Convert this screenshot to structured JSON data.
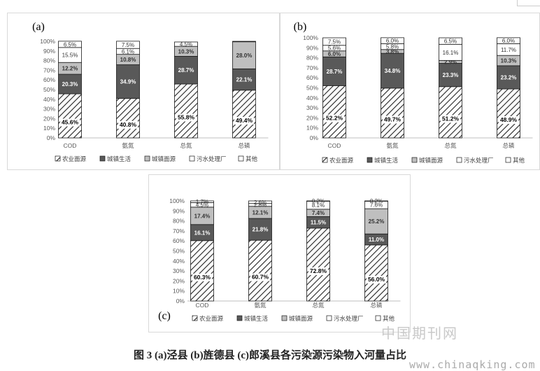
{
  "caption": "图 3   (a)泾县  (b)旌德县  (c)郎溪县各污染源污染物入河量占比",
  "watermark": {
    "cn": "中国期刊网",
    "url": "www.chinaqking.com"
  },
  "legend": [
    "农业面源",
    "城镇生活",
    "城镇面源",
    "污水处理厂",
    "其他"
  ],
  "colors": {
    "agri": "#ffffff",
    "urban_life": "#595959",
    "urban_nonpoint": "#bfbfbf",
    "sewage": "#ffffff",
    "other": "#ffffff"
  },
  "chart_data": [
    {
      "type": "bar",
      "stacked": true,
      "panel_label": "(a)",
      "categories": [
        "COD",
        "氨氮",
        "总氮",
        "总磷"
      ],
      "ylim": [
        0,
        100
      ],
      "ytick_labels": [
        "0%",
        "10%",
        "20%",
        "30%",
        "40%",
        "50%",
        "60%",
        "70%",
        "80%",
        "90%",
        "100%"
      ],
      "series": [
        {
          "name": "农业面源",
          "values": [
            45.6,
            40.8,
            55.8,
            49.4
          ],
          "labels": [
            "45.6%",
            "40.8%",
            "55.8%",
            "49.4%"
          ]
        },
        {
          "name": "城镇生活",
          "values": [
            20.3,
            34.9,
            28.7,
            22.1
          ],
          "labels": [
            "20.3%",
            "34.9%",
            "28.7%",
            "22.1%"
          ]
        },
        {
          "name": "城镇面源",
          "values": [
            12.2,
            10.8,
            10.3,
            28.0
          ],
          "labels": [
            "12.2%",
            "10.8%",
            "10.3%",
            "28.0%"
          ]
        },
        {
          "name": "污水处理厂",
          "values": [
            15.5,
            6.1,
            0.0,
            0.0
          ],
          "labels": [
            "15.5%",
            "6.1%",
            "",
            ""
          ]
        },
        {
          "name": "其他",
          "values": [
            6.5,
            7.5,
            4.5,
            0.5
          ],
          "labels": [
            "6.5%",
            "7.5%",
            "4.5%",
            ""
          ]
        }
      ]
    },
    {
      "type": "bar",
      "stacked": true,
      "panel_label": "(b)",
      "categories": [
        "COD",
        "氨氮",
        "总氮",
        "总磷"
      ],
      "ylim": [
        0,
        100
      ],
      "ytick_labels": [
        "0%",
        "10%",
        "20%",
        "30%",
        "40%",
        "50%",
        "60%",
        "70%",
        "80%",
        "90%",
        "100%"
      ],
      "series": [
        {
          "name": "农业面源",
          "values": [
            52.2,
            49.7,
            51.2,
            48.9
          ],
          "labels": [
            "52.2%",
            "49.7%",
            "51.2%",
            "48.9%"
          ]
        },
        {
          "name": "城镇生活",
          "values": [
            28.7,
            34.8,
            23.3,
            23.2
          ],
          "labels": [
            "28.7%",
            "34.8%",
            "23.3%",
            "23.2%"
          ]
        },
        {
          "name": "城镇面源",
          "values": [
            6.0,
            3.8,
            2.9,
            10.3
          ],
          "labels": [
            "6.0%",
            "3.8%",
            "2.9%",
            "10.3%"
          ]
        },
        {
          "name": "污水处理厂",
          "values": [
            5.6,
            5.8,
            16.1,
            11.7
          ],
          "labels": [
            "5.6%",
            "5.8%",
            "16.1%",
            "11.7%"
          ]
        },
        {
          "name": "其他",
          "values": [
            7.5,
            6.0,
            6.5,
            6.0
          ],
          "labels": [
            "7.5%",
            "6.0%",
            "6.5%",
            "6.0%"
          ]
        }
      ]
    },
    {
      "type": "bar",
      "stacked": true,
      "panel_label": "(c)",
      "categories": [
        "COD",
        "氨氮",
        "总氮",
        "总磷"
      ],
      "ylim": [
        0,
        100
      ],
      "ytick_labels": [
        "0%",
        "10%",
        "20%",
        "30%",
        "40%",
        "50%",
        "60%",
        "70%",
        "80%",
        "90%",
        "100%"
      ],
      "series": [
        {
          "name": "农业面源",
          "values": [
            60.3,
            60.7,
            72.8,
            56.0
          ],
          "labels": [
            "60.3%",
            "60.7%",
            "72.8%",
            "56.0%"
          ]
        },
        {
          "name": "城镇生活",
          "values": [
            16.1,
            21.8,
            11.5,
            11.0
          ],
          "labels": [
            "16.1%",
            "21.8%",
            "11.5%",
            "11.0%"
          ]
        },
        {
          "name": "城镇面源",
          "values": [
            17.4,
            12.1,
            7.4,
            25.2
          ],
          "labels": [
            "17.4%",
            "12.1%",
            "7.4%",
            "25.2%"
          ]
        },
        {
          "name": "污水处理厂",
          "values": [
            4.5,
            2.8,
            8.1,
            7.6
          ],
          "labels": [
            "4.5%",
            "2.8%",
            "8.1%",
            "7.6%"
          ]
        },
        {
          "name": "其他",
          "values": [
            1.7,
            2.6,
            0.2,
            0.2
          ],
          "labels": [
            "1.7%",
            "2.6%",
            "0.2%",
            "0.2%"
          ]
        }
      ]
    }
  ]
}
